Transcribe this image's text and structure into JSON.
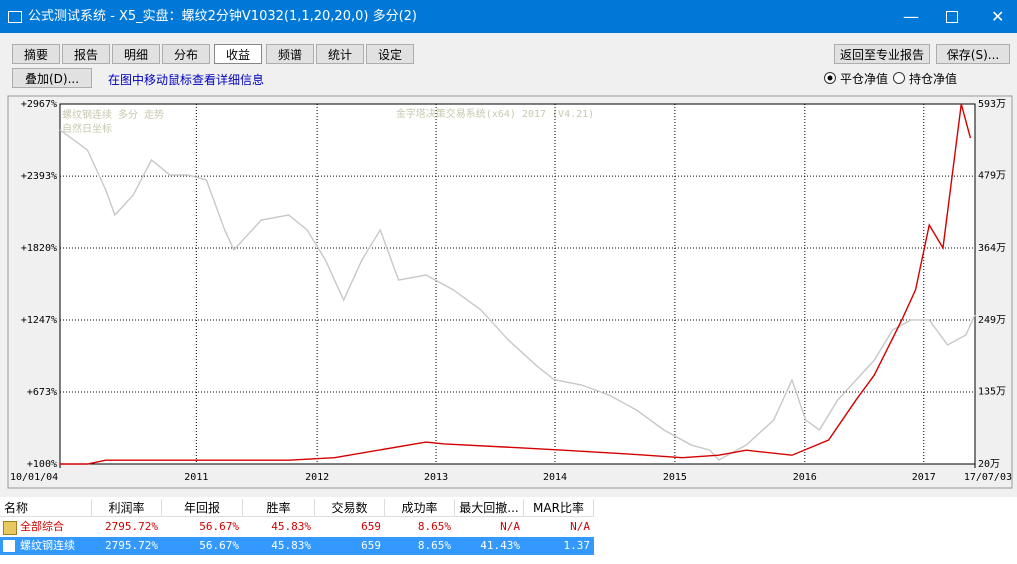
{
  "window": {
    "title": "公式测试系统 - X5_实盘：螺纹2分钟V1032(1,1,20,20,0) 多分(2)"
  },
  "toolbar": {
    "tabs": [
      "摘要",
      "报告",
      "明细",
      "分布",
      "收益",
      "频谱",
      "统计",
      "设定"
    ],
    "active_tab": 4,
    "back_button": "返回至专业报告",
    "save_button": "保存(S)...",
    "overlay_button": "叠加(D)...",
    "hint": "在图中移动鼠标查看详细信息",
    "radios": [
      "平仓净值",
      "持仓净值"
    ],
    "radio_selected": 0
  },
  "chart_data": {
    "type": "line",
    "title": "金字塔决策交易系统(x64) 2017 (V4.21)",
    "annotations": [
      "螺纹钢连续 多分 走势",
      "自然日坐标"
    ],
    "xlim": [
      0,
      100
    ],
    "xticks": [
      {
        "value": 0,
        "label": "10/01/04"
      },
      {
        "value": 14.9,
        "label": "2011"
      },
      {
        "value": 28.1,
        "label": "2012"
      },
      {
        "value": 41.1,
        "label": "2013"
      },
      {
        "value": 54.1,
        "label": "2014"
      },
      {
        "value": 67.2,
        "label": "2015"
      },
      {
        "value": 81.4,
        "label": "2016"
      },
      {
        "value": 94.4,
        "label": "2017"
      },
      {
        "value": 100,
        "label": "17/07/03"
      }
    ],
    "ylim": [
      100,
      2967
    ],
    "yticks": [
      {
        "value": 100,
        "label": "+100%"
      },
      {
        "value": 673,
        "label": "+673%"
      },
      {
        "value": 1247,
        "label": "+1247%"
      },
      {
        "value": 1820,
        "label": "+1820%"
      },
      {
        "value": 2393,
        "label": "+2393%"
      },
      {
        "value": 2967,
        "label": "+2967%"
      }
    ],
    "y2lim": [
      20,
      593
    ],
    "y2ticks": [
      {
        "value": 20,
        "label": "20万"
      },
      {
        "value": 135,
        "label": "135万"
      },
      {
        "value": 249,
        "label": "249万"
      },
      {
        "value": 364,
        "label": "364万"
      },
      {
        "value": 479,
        "label": "479万"
      },
      {
        "value": 593,
        "label": "593万"
      }
    ],
    "grid": true,
    "series": [
      {
        "color": "#c8c8c8",
        "x": [
          0,
          3,
          5,
          6,
          8,
          10,
          12,
          14,
          16,
          18,
          19,
          22,
          25,
          27,
          29,
          31,
          33,
          35,
          37,
          40,
          43,
          46,
          49,
          52,
          54,
          57,
          60,
          63,
          66,
          69,
          71,
          72,
          75,
          78,
          80,
          81.5,
          83,
          85,
          87,
          89,
          91,
          93,
          95,
          97,
          99,
          100
        ],
        "values": [
          2760,
          2601,
          2282,
          2083,
          2242,
          2521,
          2402,
          2402,
          2362,
          1964,
          1805,
          2043,
          2083,
          1964,
          1726,
          1406,
          1726,
          1964,
          1565,
          1605,
          1486,
          1327,
          1088,
          888,
          772,
          729,
          649,
          530,
          371,
          251,
          211,
          132,
          251,
          450,
          769,
          450,
          371,
          610,
          769,
          928,
          1167,
          1247,
          1247,
          1048,
          1127,
          1287
        ]
      },
      {
        "color": "#d40000",
        "x": [
          0,
          3,
          5,
          25,
          30,
          40,
          42,
          50,
          55,
          62,
          68,
          72,
          75,
          80,
          84,
          87,
          89,
          92,
          93.5,
          95,
          96.5,
          98.5,
          99.5
        ],
        "values": [
          100,
          100,
          130,
          130,
          150,
          275,
          260,
          230,
          210,
          180,
          150,
          170,
          210,
          170,
          291,
          610,
          809,
          1247,
          1486,
          2003,
          1820,
          2967,
          2696
        ]
      }
    ]
  },
  "table": {
    "headers": [
      "名称",
      "利润率",
      "年回报",
      "胜率",
      "交易数",
      "成功率",
      "最大回撤...",
      "MAR比率"
    ],
    "rows": [
      [
        "全部综合",
        "2795.72%",
        "56.67%",
        "45.83%",
        "659",
        "8.65%",
        "N/A",
        "N/A"
      ],
      [
        "螺纹钢连续",
        "2795.72%",
        "56.67%",
        "45.83%",
        "659",
        "8.65%",
        "41.43%",
        "1.37"
      ]
    ],
    "selected_row": 1
  }
}
